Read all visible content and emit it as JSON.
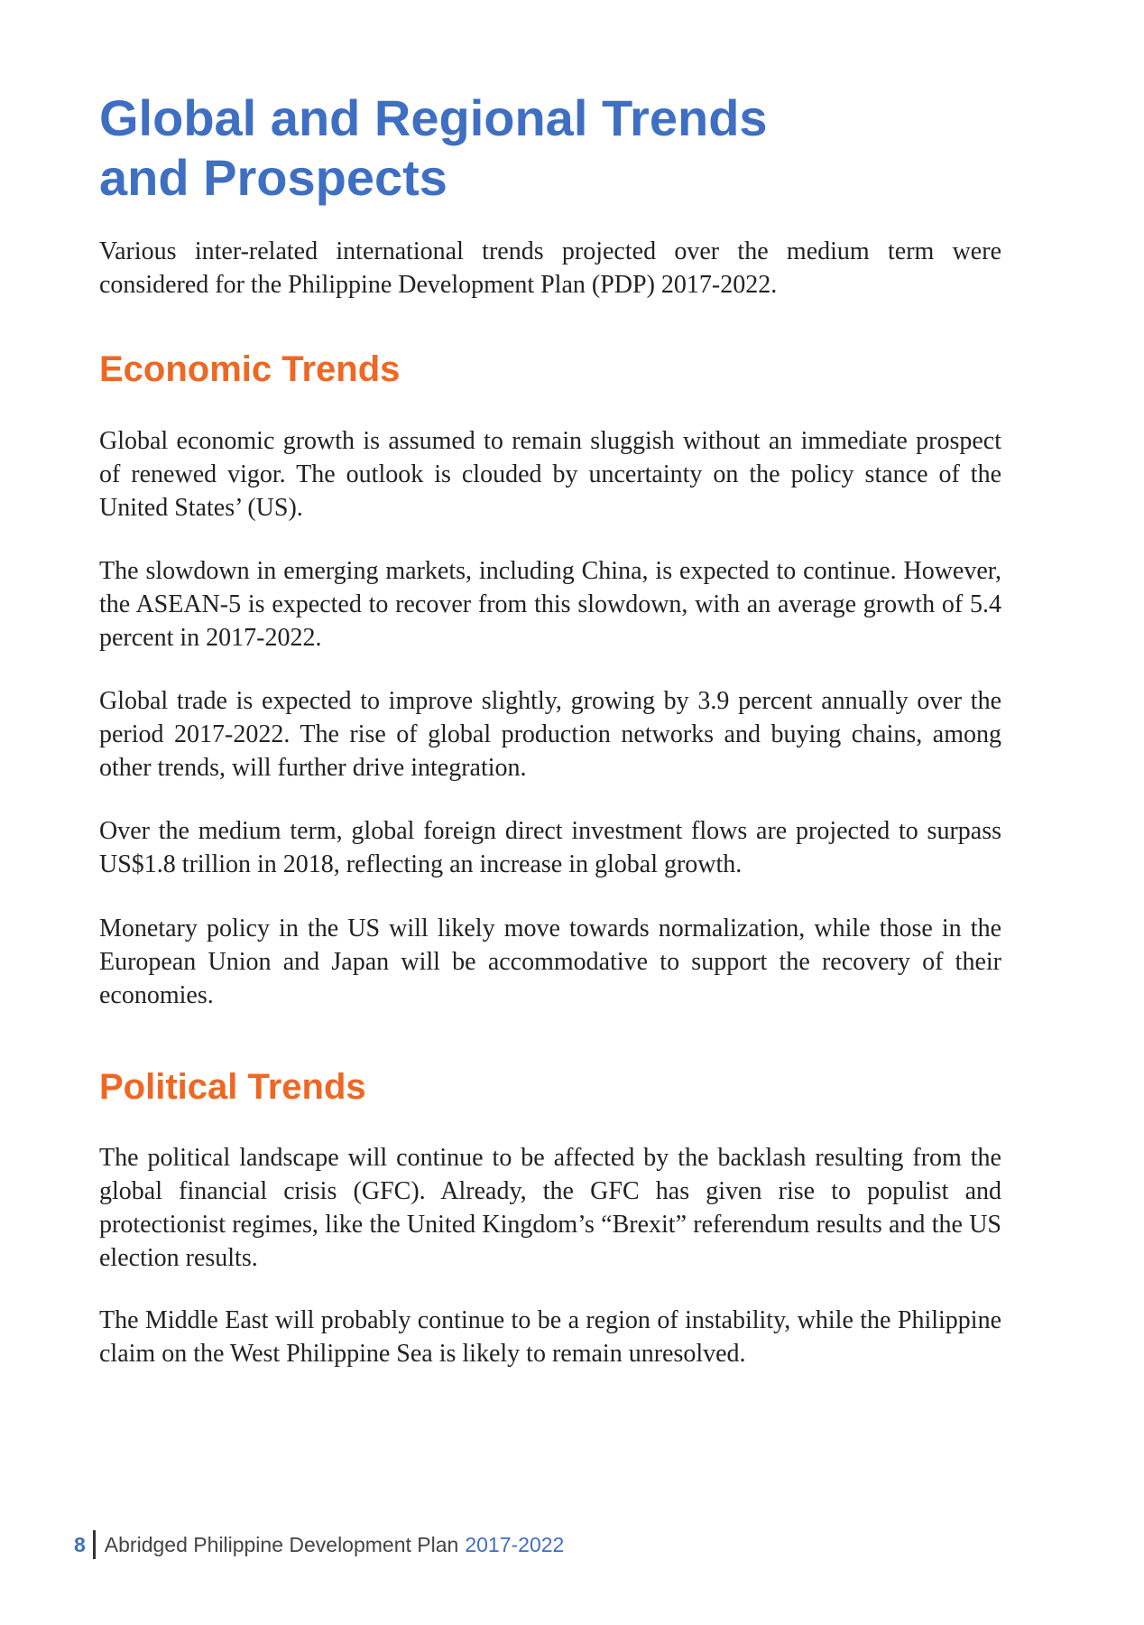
{
  "title": {
    "line1": "Global and Regional Trends",
    "line2": "and Prospects"
  },
  "intro": "Various inter-related international trends projected over the medium term were considered for the Philippine Development Plan (PDP) 2017-2022.",
  "economic": {
    "heading": "Economic Trends",
    "paragraphs": [
      "Global economic growth is assumed to remain sluggish without an immediate prospect of renewed vigor. The outlook is clouded by uncertainty on the policy stance of the United States’ (US).",
      "The slowdown in emerging markets, including China, is expected to continue. However, the ASEAN-5 is expected to recover from this slowdown, with an average growth of 5.4 percent in 2017-2022.",
      "Global trade is expected to improve slightly, growing by 3.9 percent annually over the period 2017-2022. The rise of global production networks and buying chains, among other trends, will further drive integration.",
      "Over the medium term, global foreign direct investment flows are projected to surpass US$1.8 trillion in 2018, reflecting an increase in global growth.",
      "Monetary policy in the US will likely move towards normalization, while those in the European Union and Japan will be accommodative to support the recovery of their economies."
    ]
  },
  "political": {
    "heading": "Political Trends",
    "paragraphs": [
      "The political landscape will continue to be affected by the backlash resulting from the global financial crisis (GFC). Already, the GFC has given rise to populist and protectionist regimes, like the United Kingdom’s “Brexit” referendum results and the US election results.",
      "The Middle East will probably continue to be a region of instability, while the Philippine claim on the West Philippine Sea is likely to remain unresolved."
    ]
  },
  "footer": {
    "page_number": "8",
    "text": "Abridged Philippine Development Plan",
    "years": "2017-2022"
  },
  "colors": {
    "title": "#3f6fc2",
    "section_heading": "#ee6723",
    "body_text": "#222222"
  }
}
